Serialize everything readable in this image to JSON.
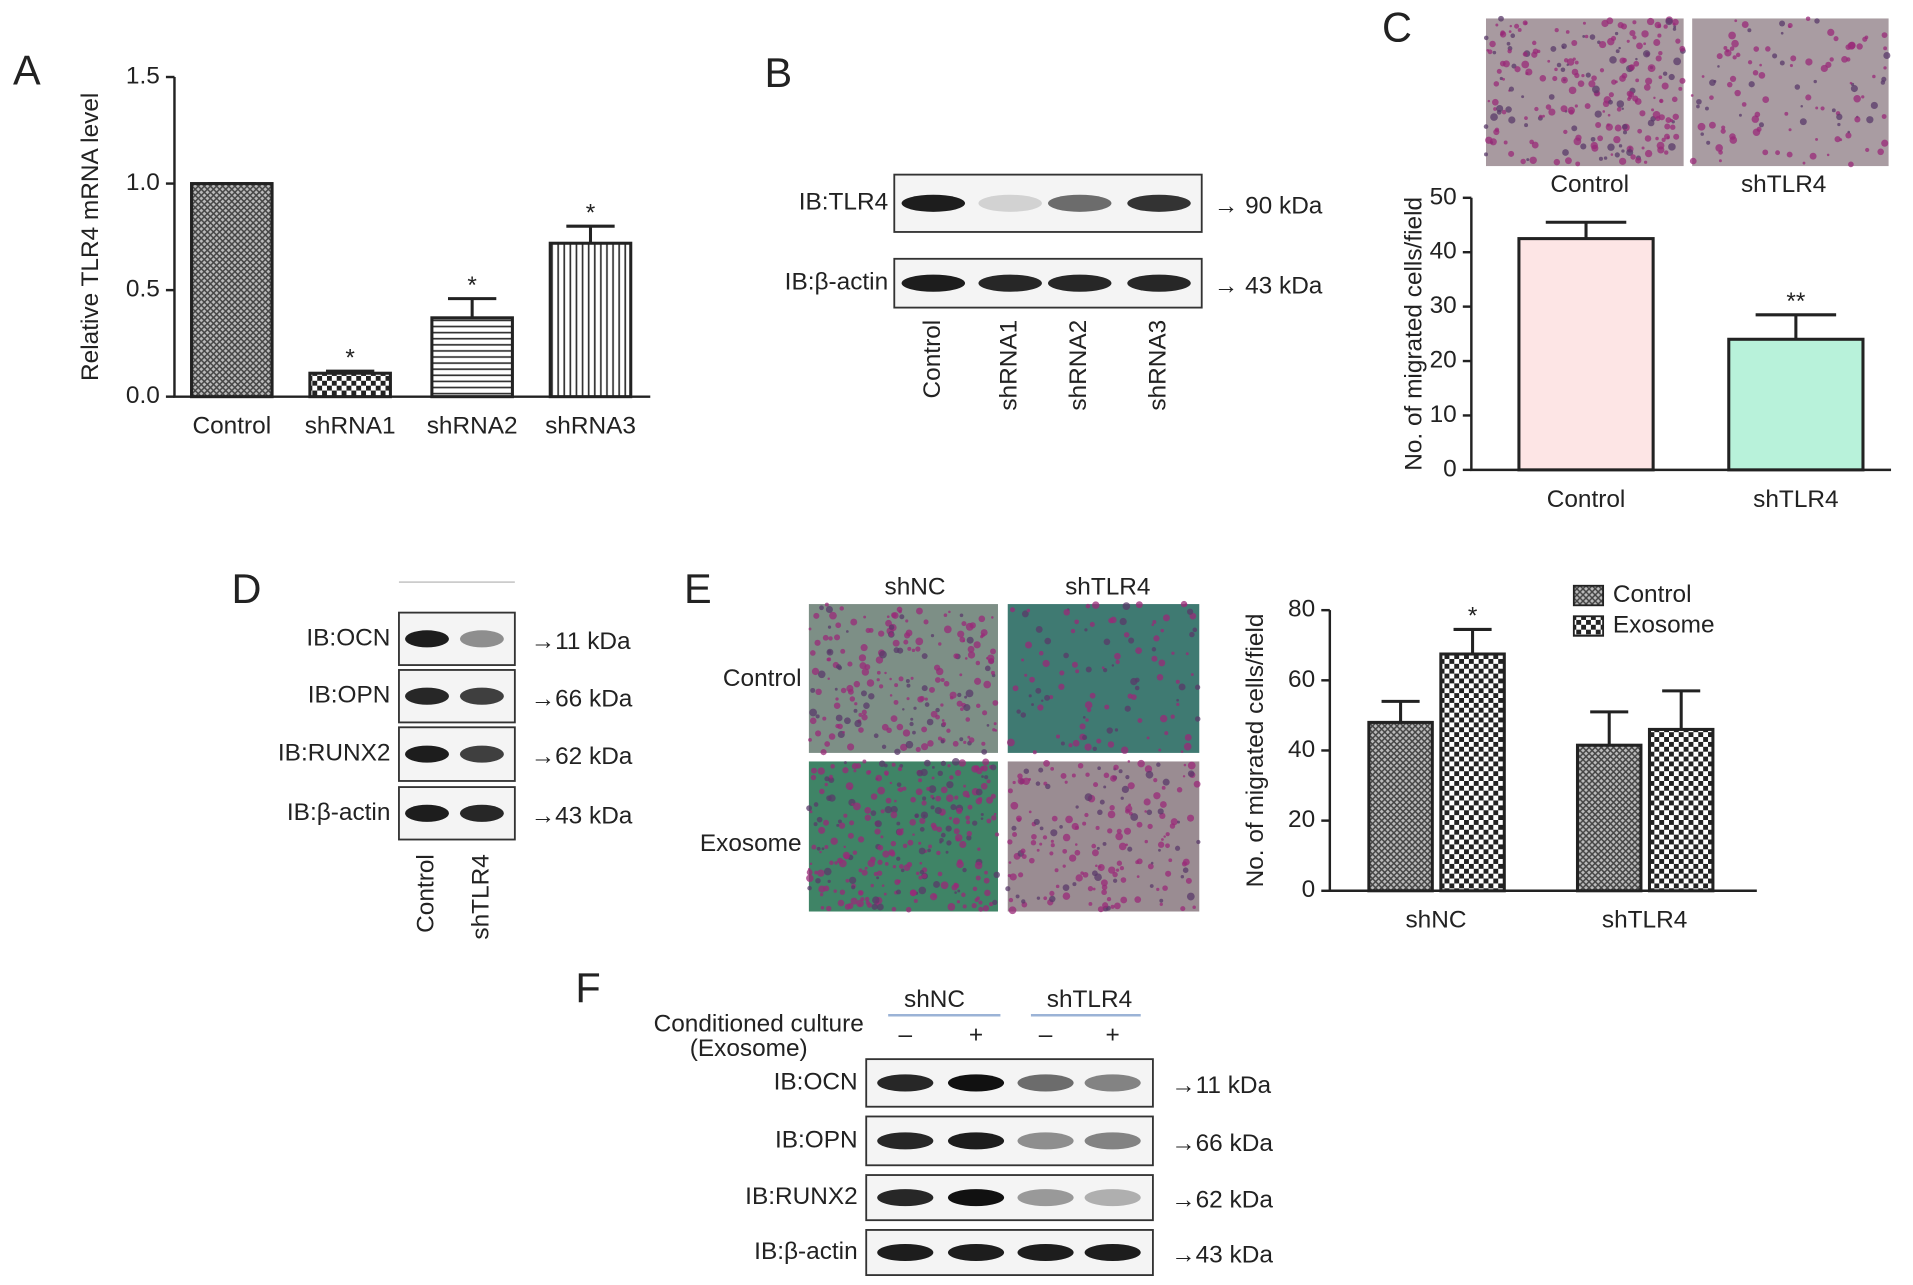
{
  "chart_data": [
    {
      "type": "bar",
      "panel": "A",
      "ylabel": "Relative TLR4 mRNA level",
      "categories": [
        "Control",
        "shRNA1",
        "shRNA2",
        "shRNA3"
      ],
      "series": [
        {
          "values": [
            1.0,
            0.11,
            0.37,
            0.72
          ],
          "errors": [
            0,
            0.01,
            0.09,
            0.08
          ],
          "fills": [
            "crosshatch",
            "checker",
            "hlines",
            "vlines"
          ],
          "annotations": [
            null,
            "*",
            "*",
            "*"
          ]
        }
      ],
      "ylim": [
        0,
        1.5
      ],
      "yticks": [
        {
          "value": 0,
          "label": "0.0"
        },
        0.5,
        {
          "value": 1,
          "label": "1.0"
        },
        1.5
      ]
    },
    {
      "type": "bar",
      "panel": "C",
      "ylabel": "No. of migrated cells/field",
      "categories": [
        "Control",
        "shTLR4"
      ],
      "series": [
        {
          "values": [
            42.5,
            24
          ],
          "errors": [
            3,
            4.5
          ],
          "fills": [
            "#fde5e5",
            "#b8f2da"
          ],
          "annotations": [
            null,
            "**"
          ]
        }
      ],
      "ylim": [
        0,
        50
      ],
      "yticks": [
        0,
        10,
        20,
        30,
        40,
        50
      ]
    },
    {
      "type": "bar",
      "panel": "E",
      "ylabel": "No. of migrated cells/field",
      "categories": [
        "shNC",
        "shTLR4"
      ],
      "series": [
        {
          "name": "Control",
          "values": [
            48,
            41.5
          ],
          "errors": [
            6,
            9.5
          ],
          "fill": "crosshatch",
          "annotations": [
            null,
            null
          ]
        },
        {
          "name": "Exosome",
          "values": [
            67.5,
            46
          ],
          "errors": [
            7,
            11
          ],
          "fill": "checker",
          "annotations": [
            "*",
            null
          ]
        }
      ],
      "ylim": [
        0,
        80
      ],
      "yticks": [
        0,
        20,
        40,
        60,
        80
      ],
      "legend": "upper right"
    }
  ],
  "micrographs": {
    "C": {
      "columns": [
        "Control",
        "shTLR4"
      ]
    },
    "E": {
      "columns": [
        "shNC",
        "shTLR4"
      ],
      "rows": [
        "Control",
        "Exosome"
      ]
    }
  },
  "blots": {
    "B": {
      "panel": "B",
      "rows": [
        "IB:TLR4",
        "IB:β-actin"
      ],
      "sizes": [
        "→ 90 kDa",
        "→ 43 kDa"
      ],
      "lanes": [
        "Control",
        "shRNA1",
        "shRNA2",
        "shRNA3"
      ]
    },
    "D": {
      "panel": "D",
      "rows": [
        "IB:OCN",
        "IB:OPN",
        "IB:RUNX2",
        "IB:β-actin"
      ],
      "sizes": [
        "→11 kDa",
        "→66 kDa",
        "→62 kDa",
        "→43 kDa"
      ],
      "lanes": [
        "Control",
        "shTLR4"
      ]
    },
    "F": {
      "panel": "F",
      "groups": [
        "shNC",
        "shTLR4"
      ],
      "condition": [
        "Conditioned culture",
        "(Exosome)"
      ],
      "signs": [
        "–",
        "+",
        "–",
        "+"
      ],
      "rows": [
        "IB:OCN",
        "IB:OPN",
        "IB:RUNX2",
        "IB:β-actin"
      ],
      "sizes": [
        "→11 kDa",
        "→66 kDa",
        "→62 kDa",
        "→43 kDa"
      ]
    }
  }
}
